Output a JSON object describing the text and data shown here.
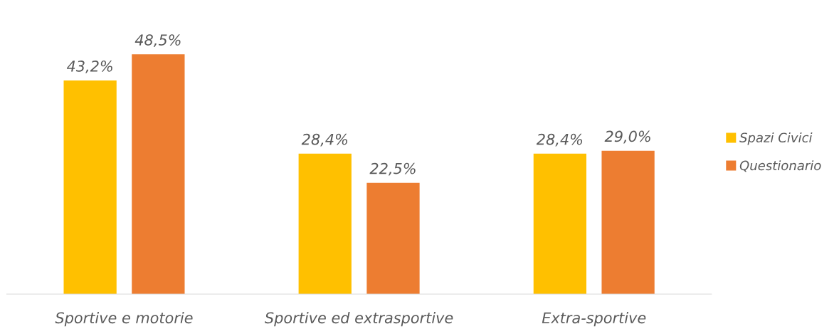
{
  "chart_data": {
    "type": "bar",
    "categories": [
      "Sportive e motorie",
      "Sportive ed extrasportive",
      "Extra-sportive"
    ],
    "series": [
      {
        "name": "Spazi Civici",
        "color": "#ffc000",
        "values": [
          43.2,
          28.4,
          28.4
        ],
        "value_labels": [
          "43,2%",
          "28,4%",
          "28,4%"
        ]
      },
      {
        "name": "Questionario",
        "color": "#ed7d31",
        "values": [
          48.5,
          22.5,
          29.0
        ],
        "value_labels": [
          "48,5%",
          "22,5%",
          "29,0%"
        ]
      }
    ],
    "legend": "right",
    "grid": false
  }
}
